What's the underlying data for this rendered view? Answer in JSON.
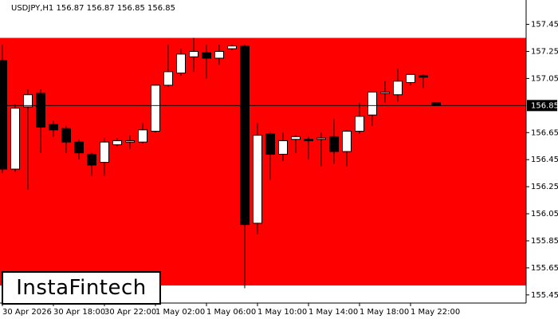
{
  "chart_data": {
    "type": "candlestick",
    "title": "USDJPY,H1  156.87 156.87 156.85 156.85",
    "watermark": "InstaFintech",
    "categories": [
      "30 Apr 2026",
      null,
      null,
      null,
      "30 Apr 18:00",
      null,
      null,
      null,
      "30 Apr 22:00",
      null,
      null,
      null,
      "1 May 02:00",
      null,
      null,
      null,
      "1 May 06:00",
      null,
      null,
      null,
      "1 May 10:00",
      null,
      null,
      null,
      "1 May 14:00",
      null,
      null,
      null,
      "1 May 18:00",
      null,
      null,
      null,
      "1 May 22:00",
      null,
      null
    ],
    "open": [
      157.185,
      156.38,
      156.84,
      156.94,
      156.71,
      156.68,
      156.58,
      156.49,
      156.43,
      156.56,
      156.58,
      156.58,
      156.66,
      157.0,
      157.09,
      157.21,
      157.24,
      157.2,
      157.27,
      157.29,
      155.98,
      156.64,
      156.49,
      156.6,
      156.6,
      156.6,
      156.62,
      156.51,
      156.66,
      156.78,
      156.94,
      156.93,
      157.02,
      157.07,
      156.87
    ],
    "high": [
      157.3,
      156.86,
      156.97,
      156.97,
      156.74,
      156.7,
      156.6,
      156.5,
      156.61,
      156.61,
      156.63,
      156.72,
      157.0,
      157.3,
      157.27,
      157.35,
      157.3,
      157.3,
      157.3,
      157.3,
      156.72,
      156.65,
      156.65,
      156.63,
      156.62,
      156.65,
      156.75,
      156.67,
      156.87,
      156.95,
      157.03,
      157.12,
      157.08,
      157.08,
      156.87
    ],
    "low": [
      156.35,
      156.36,
      156.23,
      156.5,
      156.62,
      156.5,
      156.45,
      156.33,
      156.33,
      156.55,
      156.53,
      156.57,
      156.65,
      156.99,
      157.07,
      157.1,
      157.05,
      157.15,
      157.26,
      155.5,
      155.9,
      156.3,
      156.44,
      156.5,
      156.45,
      156.4,
      156.42,
      156.4,
      156.64,
      156.7,
      156.87,
      156.88,
      157.0,
      156.98,
      156.85
    ],
    "close": [
      156.38,
      156.83,
      156.93,
      156.69,
      156.67,
      156.58,
      156.5,
      156.41,
      156.58,
      156.59,
      156.59,
      156.67,
      157.0,
      157.1,
      157.23,
      157.25,
      157.2,
      157.25,
      157.29,
      155.97,
      156.63,
      156.49,
      156.59,
      156.62,
      156.59,
      156.61,
      156.51,
      156.66,
      156.77,
      156.95,
      156.95,
      157.03,
      157.08,
      157.06,
      156.85
    ],
    "up_color": "#ffffff",
    "down_color": "#000000",
    "zone": {
      "top": 157.35,
      "bottom": 155.52,
      "color": "#ff0000"
    },
    "current_price": {
      "value": 156.85,
      "label": "156.85"
    },
    "ylim": [
      155.39,
      157.63
    ],
    "yticks": [
      155.45,
      155.65,
      155.85,
      156.05,
      156.25,
      156.45,
      156.65,
      157.05,
      157.25,
      157.45
    ]
  }
}
